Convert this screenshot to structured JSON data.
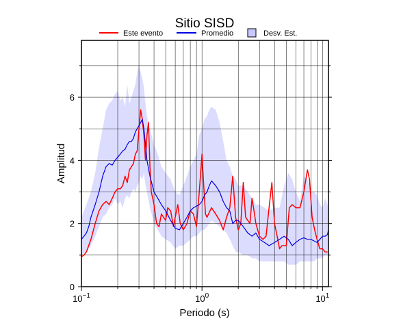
{
  "chart_data": {
    "type": "line",
    "title": "Sitio SISD",
    "xlabel": "Periodo (s)",
    "ylabel": "Amplitud",
    "x_scale": "log",
    "xlim": [
      0.1,
      11.2
    ],
    "ylim": [
      0,
      7.8
    ],
    "x_tick_base": "10",
    "x_tick_exponents": [
      "−1",
      "0",
      "1"
    ],
    "x_tick_values": [
      0.1,
      1,
      10
    ],
    "y_tick_values": [
      0,
      2,
      4,
      6
    ],
    "y_tick_labels": [
      "0",
      "2",
      "4",
      "6"
    ],
    "grid": true,
    "legend_position": "top",
    "legend": [
      "Este evento",
      "Promedio",
      "Desv. Est."
    ],
    "colors": {
      "este_evento": "#ff0000",
      "promedio": "#0000e0",
      "band_fill": "#dcdcff",
      "band_swatch": "#c8c8ff"
    },
    "series": [
      {
        "name": "Este evento",
        "x": [
          0.1,
          0.105,
          0.11,
          0.12,
          0.13,
          0.14,
          0.15,
          0.16,
          0.17,
          0.18,
          0.19,
          0.2,
          0.21,
          0.22,
          0.23,
          0.24,
          0.25,
          0.26,
          0.27,
          0.28,
          0.29,
          0.3,
          0.31,
          0.32,
          0.33,
          0.34,
          0.35,
          0.36,
          0.37,
          0.38,
          0.4,
          0.42,
          0.44,
          0.46,
          0.48,
          0.5,
          0.52,
          0.55,
          0.58,
          0.6,
          0.63,
          0.66,
          0.7,
          0.75,
          0.8,
          0.85,
          0.9,
          0.95,
          1.0,
          1.03,
          1.07,
          1.1,
          1.2,
          1.3,
          1.4,
          1.5,
          1.6,
          1.7,
          1.8,
          1.9,
          2.0,
          2.1,
          2.2,
          2.3,
          2.4,
          2.5,
          2.6,
          2.7,
          2.8,
          3.0,
          3.2,
          3.4,
          3.6,
          3.8,
          4.0,
          4.2,
          4.4,
          4.6,
          4.8,
          5.0,
          5.3,
          5.6,
          6.0,
          6.5,
          7.0,
          7.5,
          7.8,
          8.2,
          8.6,
          9.0,
          9.5,
          10.0,
          10.5,
          11.0
        ],
        "y": [
          0.95,
          1.0,
          1.1,
          1.5,
          2.0,
          2.4,
          2.6,
          2.7,
          2.6,
          2.8,
          3.0,
          3.1,
          3.1,
          3.2,
          3.5,
          3.3,
          3.7,
          3.8,
          3.9,
          4.2,
          4.3,
          5.0,
          5.6,
          5.3,
          4.8,
          4.0,
          4.8,
          5.2,
          3.8,
          3.0,
          2.6,
          2.0,
          1.9,
          2.3,
          2.2,
          2.1,
          2.5,
          2.4,
          1.9,
          2.2,
          2.6,
          2.0,
          1.8,
          2.0,
          2.4,
          2.3,
          1.9,
          3.0,
          4.2,
          3.3,
          2.3,
          2.2,
          2.5,
          2.3,
          2.1,
          1.8,
          2.2,
          2.5,
          3.5,
          2.2,
          1.8,
          2.0,
          3.3,
          2.2,
          2.1,
          2.0,
          2.8,
          2.4,
          2.0,
          1.6,
          1.5,
          1.6,
          2.5,
          3.3,
          2.0,
          1.6,
          1.2,
          1.3,
          1.3,
          1.3,
          2.5,
          2.6,
          2.5,
          2.5,
          3.0,
          3.7,
          3.4,
          2.2,
          1.8,
          1.5,
          1.2,
          1.2,
          1.1,
          1.1
        ]
      },
      {
        "name": "Promedio",
        "x": [
          0.1,
          0.105,
          0.11,
          0.115,
          0.12,
          0.13,
          0.14,
          0.15,
          0.16,
          0.17,
          0.18,
          0.19,
          0.2,
          0.21,
          0.22,
          0.23,
          0.24,
          0.25,
          0.26,
          0.27,
          0.28,
          0.29,
          0.3,
          0.31,
          0.32,
          0.33,
          0.34,
          0.35,
          0.37,
          0.4,
          0.43,
          0.46,
          0.5,
          0.55,
          0.6,
          0.65,
          0.7,
          0.75,
          0.8,
          0.85,
          0.9,
          0.95,
          1.0,
          1.05,
          1.1,
          1.15,
          1.2,
          1.3,
          1.4,
          1.5,
          1.6,
          1.7,
          1.8,
          1.9,
          2.0,
          2.2,
          2.4,
          2.6,
          2.8,
          3.0,
          3.3,
          3.6,
          4.0,
          4.4,
          4.8,
          5.2,
          5.6,
          6.0,
          6.5,
          7.0,
          7.5,
          8.0,
          8.5,
          9.0,
          9.5,
          10.0,
          10.5,
          11.0,
          11.2
        ],
        "y": [
          1.5,
          1.6,
          1.7,
          1.9,
          2.2,
          2.6,
          3.0,
          3.5,
          3.8,
          3.9,
          3.85,
          4.0,
          4.1,
          4.2,
          4.3,
          4.35,
          4.5,
          4.6,
          4.6,
          4.7,
          4.9,
          5.0,
          5.1,
          5.2,
          5.3,
          5.0,
          4.5,
          4.0,
          3.5,
          3.0,
          2.8,
          2.6,
          2.4,
          2.1,
          1.85,
          1.8,
          2.0,
          2.2,
          2.4,
          2.5,
          2.55,
          2.6,
          2.7,
          2.9,
          3.0,
          3.2,
          3.35,
          3.2,
          3.0,
          2.7,
          2.5,
          2.4,
          2.0,
          2.1,
          2.1,
          1.9,
          1.7,
          1.6,
          1.7,
          1.5,
          1.4,
          1.3,
          1.4,
          1.5,
          1.6,
          1.5,
          1.3,
          1.4,
          1.5,
          1.55,
          1.5,
          1.5,
          1.45,
          1.4,
          1.5,
          1.6,
          1.6,
          1.65,
          1.8
        ]
      }
    ],
    "band": {
      "name": "Desv. Est.",
      "x": [
        0.1,
        0.11,
        0.12,
        0.13,
        0.14,
        0.15,
        0.16,
        0.17,
        0.18,
        0.19,
        0.2,
        0.21,
        0.22,
        0.23,
        0.24,
        0.25,
        0.26,
        0.27,
        0.28,
        0.29,
        0.3,
        0.31,
        0.32,
        0.33,
        0.34,
        0.35,
        0.37,
        0.4,
        0.43,
        0.46,
        0.5,
        0.55,
        0.6,
        0.65,
        0.7,
        0.75,
        0.8,
        0.85,
        0.9,
        0.95,
        1.0,
        1.05,
        1.1,
        1.15,
        1.2,
        1.3,
        1.4,
        1.5,
        1.6,
        1.7,
        1.8,
        1.9,
        2.0,
        2.2,
        2.4,
        2.6,
        2.8,
        3.0,
        3.3,
        3.6,
        4.0,
        4.4,
        4.8,
        5.2,
        5.6,
        6.0,
        6.5,
        7.0,
        7.5,
        8.0,
        8.5,
        9.0,
        9.5,
        10.0,
        10.5,
        11.0,
        11.2
      ],
      "upper": [
        2.2,
        2.6,
        3.0,
        3.6,
        4.4,
        5.0,
        5.6,
        5.8,
        5.9,
        6.1,
        6.2,
        5.9,
        6.0,
        5.7,
        6.4,
        5.8,
        6.0,
        6.2,
        6.4,
        6.8,
        7.0,
        6.8,
        6.6,
        6.3,
        5.8,
        5.4,
        5.0,
        4.5,
        4.2,
        3.8,
        3.6,
        3.4,
        3.0,
        2.9,
        3.2,
        3.5,
        3.8,
        4.0,
        4.2,
        4.8,
        5.0,
        5.3,
        5.4,
        5.6,
        5.7,
        5.6,
        5.2,
        4.6,
        4.0,
        3.8,
        3.5,
        3.4,
        3.2,
        3.2,
        3.0,
        2.8,
        2.6,
        2.6,
        2.5,
        2.4,
        2.5,
        2.5,
        3.2,
        3.6,
        3.4,
        3.0,
        2.7,
        3.5,
        3.4,
        3.0,
        3.0,
        2.9,
        2.6,
        2.5,
        2.8,
        2.6,
        2.4
      ],
      "lower": [
        1.0,
        1.1,
        1.3,
        1.6,
        1.9,
        2.2,
        2.3,
        2.5,
        2.6,
        2.8,
        2.6,
        2.7,
        2.5,
        2.8,
        2.9,
        2.8,
        3.0,
        3.1,
        3.0,
        3.2,
        3.3,
        3.5,
        3.4,
        3.6,
        3.2,
        3.0,
        2.5,
        2.0,
        1.8,
        1.6,
        1.5,
        1.4,
        1.2,
        1.3,
        1.3,
        1.4,
        1.5,
        1.6,
        1.6,
        1.7,
        1.8,
        1.8,
        1.9,
        2.0,
        2.1,
        2.0,
        1.9,
        1.8,
        1.7,
        1.5,
        1.3,
        1.1,
        1.1,
        1.0,
        1.0,
        0.9,
        0.9,
        0.8,
        0.8,
        0.8,
        0.8,
        0.8,
        0.8,
        0.7,
        0.7,
        0.7,
        0.8,
        0.8,
        0.8,
        0.8,
        0.8,
        0.9,
        0.9,
        0.9,
        1.0,
        1.0,
        1.1
      ]
    }
  }
}
